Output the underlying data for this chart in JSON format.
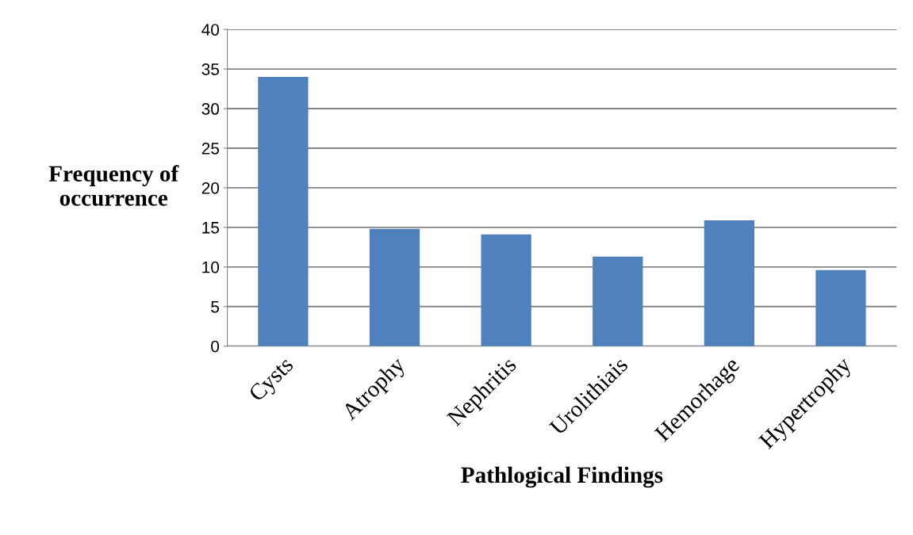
{
  "chart_data": {
    "type": "bar",
    "categories": [
      "Cysts",
      "Atrophy",
      "Nephritis",
      "Urolithiais",
      "Hemorhage",
      "Hypertrophy"
    ],
    "values": [
      34.0,
      14.8,
      14.1,
      11.3,
      15.9,
      9.6
    ],
    "color": "#4f81bd",
    "xlabel": "Pathlogical Findings",
    "ylabel": "Frequency of\noccurrence",
    "ylim": [
      0,
      40
    ],
    "yticks": [
      0,
      5,
      10,
      15,
      20,
      25,
      30,
      35,
      40
    ],
    "grid": "y",
    "legend": false
  }
}
